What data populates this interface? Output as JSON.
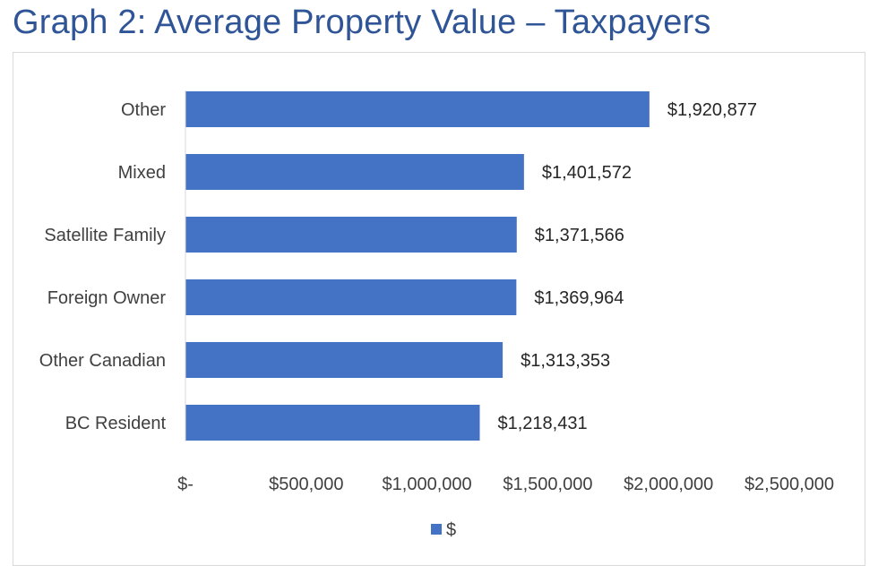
{
  "title": "Graph 2: Average Property Value – Taxpayers",
  "chart_data": {
    "type": "bar",
    "orientation": "horizontal",
    "categories": [
      "Other",
      "Mixed",
      "Satellite Family",
      "Foreign Owner",
      "Other Canadian",
      "BC Resident"
    ],
    "series": [
      {
        "name": "$",
        "values": [
          1920877,
          1401572,
          1371566,
          1369964,
          1313353,
          1218431
        ],
        "data_labels": [
          "$1,920,877",
          "$1,401,572",
          "$1,371,566",
          "$1,369,964",
          "$1,313,353",
          "$1,218,431"
        ],
        "color": "#4472c4"
      }
    ],
    "x_ticks": [
      0,
      500000,
      1000000,
      1500000,
      2000000,
      2500000
    ],
    "x_tick_labels": [
      "$-",
      "$500,000",
      "$1,000,000",
      "$1,500,000",
      "$2,000,000",
      "$2,500,000"
    ],
    "xlim": [
      0,
      2500000
    ],
    "grid": false,
    "legend": "bottom",
    "xlabel": "",
    "ylabel": ""
  }
}
